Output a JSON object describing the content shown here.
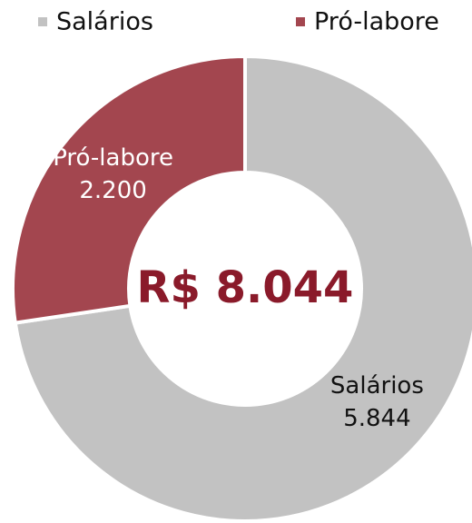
{
  "chart_data": {
    "type": "pie",
    "donut": true,
    "categories": [
      "Salários",
      "Pró-labore"
    ],
    "values": [
      5844,
      2200
    ],
    "value_labels": [
      "5.844",
      "2.200"
    ],
    "colors": [
      "#c2c2c2",
      "#a3464f"
    ],
    "center_label": "R$ 8.044",
    "legend": "top"
  }
}
